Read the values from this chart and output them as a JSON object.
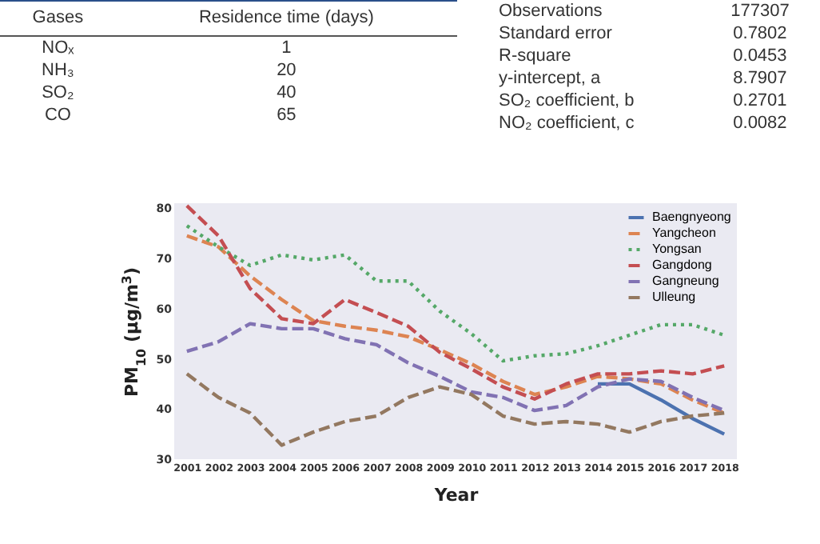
{
  "chart_data": [
    {
      "type": "other",
      "xlabel": "Gases",
      "ylabel": "Residence time (days)",
      "categories": [
        "NOₓ",
        "NH₃",
        "SO₂",
        "CO"
      ],
      "values": [
        1,
        20,
        40,
        65
      ],
      "data_labels": true
    },
    {
      "type": "other",
      "categories": [
        "Observations",
        "Standard error",
        "R-square",
        "y-intercept, a",
        "SO₂ coefficient, b",
        "NO₂ coefficient, c"
      ],
      "values": [
        177307,
        0.7802,
        0.0453,
        8.7907,
        0.2701,
        0.0082
      ],
      "data_labels": true
    },
    {
      "type": "line",
      "xlabel": "Year",
      "ylabel": "PM$_{10}$ (μg/m$^{3}$)",
      "x": [
        2001,
        2002,
        2003,
        2004,
        2005,
        2006,
        2007,
        2008,
        2009,
        2010,
        2011,
        2012,
        2013,
        2014,
        2015,
        2016,
        2017,
        2018
      ],
      "xlim": [
        2000.6,
        2018.4
      ],
      "xticks": [
        2001,
        2002,
        2003,
        2004,
        2005,
        2006,
        2007,
        2008,
        2009,
        2010,
        2011,
        2012,
        2013,
        2014,
        2015,
        2016,
        2017,
        2018
      ],
      "ylim": [
        30,
        81
      ],
      "yticks": [
        30,
        40,
        50,
        60,
        70,
        80
      ],
      "grid": false,
      "legend": "top right",
      "series": [
        {
          "name": "Baengnyeong",
          "color": "#4c72b0",
          "line_style": "solid",
          "values": [
            null,
            null,
            null,
            null,
            null,
            null,
            null,
            null,
            null,
            null,
            null,
            null,
            null,
            45,
            45,
            41.8,
            38.1,
            35
          ]
        },
        {
          "name": "Yangcheon",
          "color": "#dd8452",
          "line_style": "dashed",
          "values": [
            74.5,
            72.3,
            66.5,
            61.8,
            57.6,
            56.5,
            55.7,
            54.4,
            51.8,
            49,
            45.5,
            42.9,
            44.4,
            46.5,
            46,
            45,
            41.8,
            39.2
          ]
        },
        {
          "name": "Yongsan",
          "color": "#55a868",
          "line_style": "dotted",
          "values": [
            76.5,
            72.3,
            68.6,
            70.7,
            69.7,
            70.7,
            65.5,
            65.5,
            59.5,
            55,
            49.6,
            50.6,
            51,
            52.6,
            54.7,
            56.8,
            56.8,
            54.7
          ]
        },
        {
          "name": "Gangdong",
          "color": "#c44e52",
          "line_style": "dashed",
          "values": [
            80.5,
            74.5,
            64,
            58,
            57,
            61.8,
            59.2,
            56.5,
            51.3,
            48,
            44.4,
            42,
            45,
            47,
            47,
            47.6,
            47,
            48.6
          ]
        },
        {
          "name": "Gangneung",
          "color": "#8172b3",
          "line_style": "dashed",
          "values": [
            51.5,
            53.4,
            57,
            56,
            56,
            54,
            52.8,
            49.2,
            46.5,
            43.4,
            42.3,
            39.7,
            40.7,
            44.4,
            46,
            45.5,
            42.3,
            39.7
          ]
        },
        {
          "name": "Ulleung",
          "color": "#937860",
          "line_style": "dashed",
          "values": [
            47,
            42.3,
            39.2,
            32.8,
            35.4,
            37.5,
            38.6,
            42.3,
            44.4,
            42.9,
            38.6,
            37,
            37.5,
            37,
            35.4,
            37.5,
            38.6,
            39.2
          ]
        }
      ]
    }
  ]
}
